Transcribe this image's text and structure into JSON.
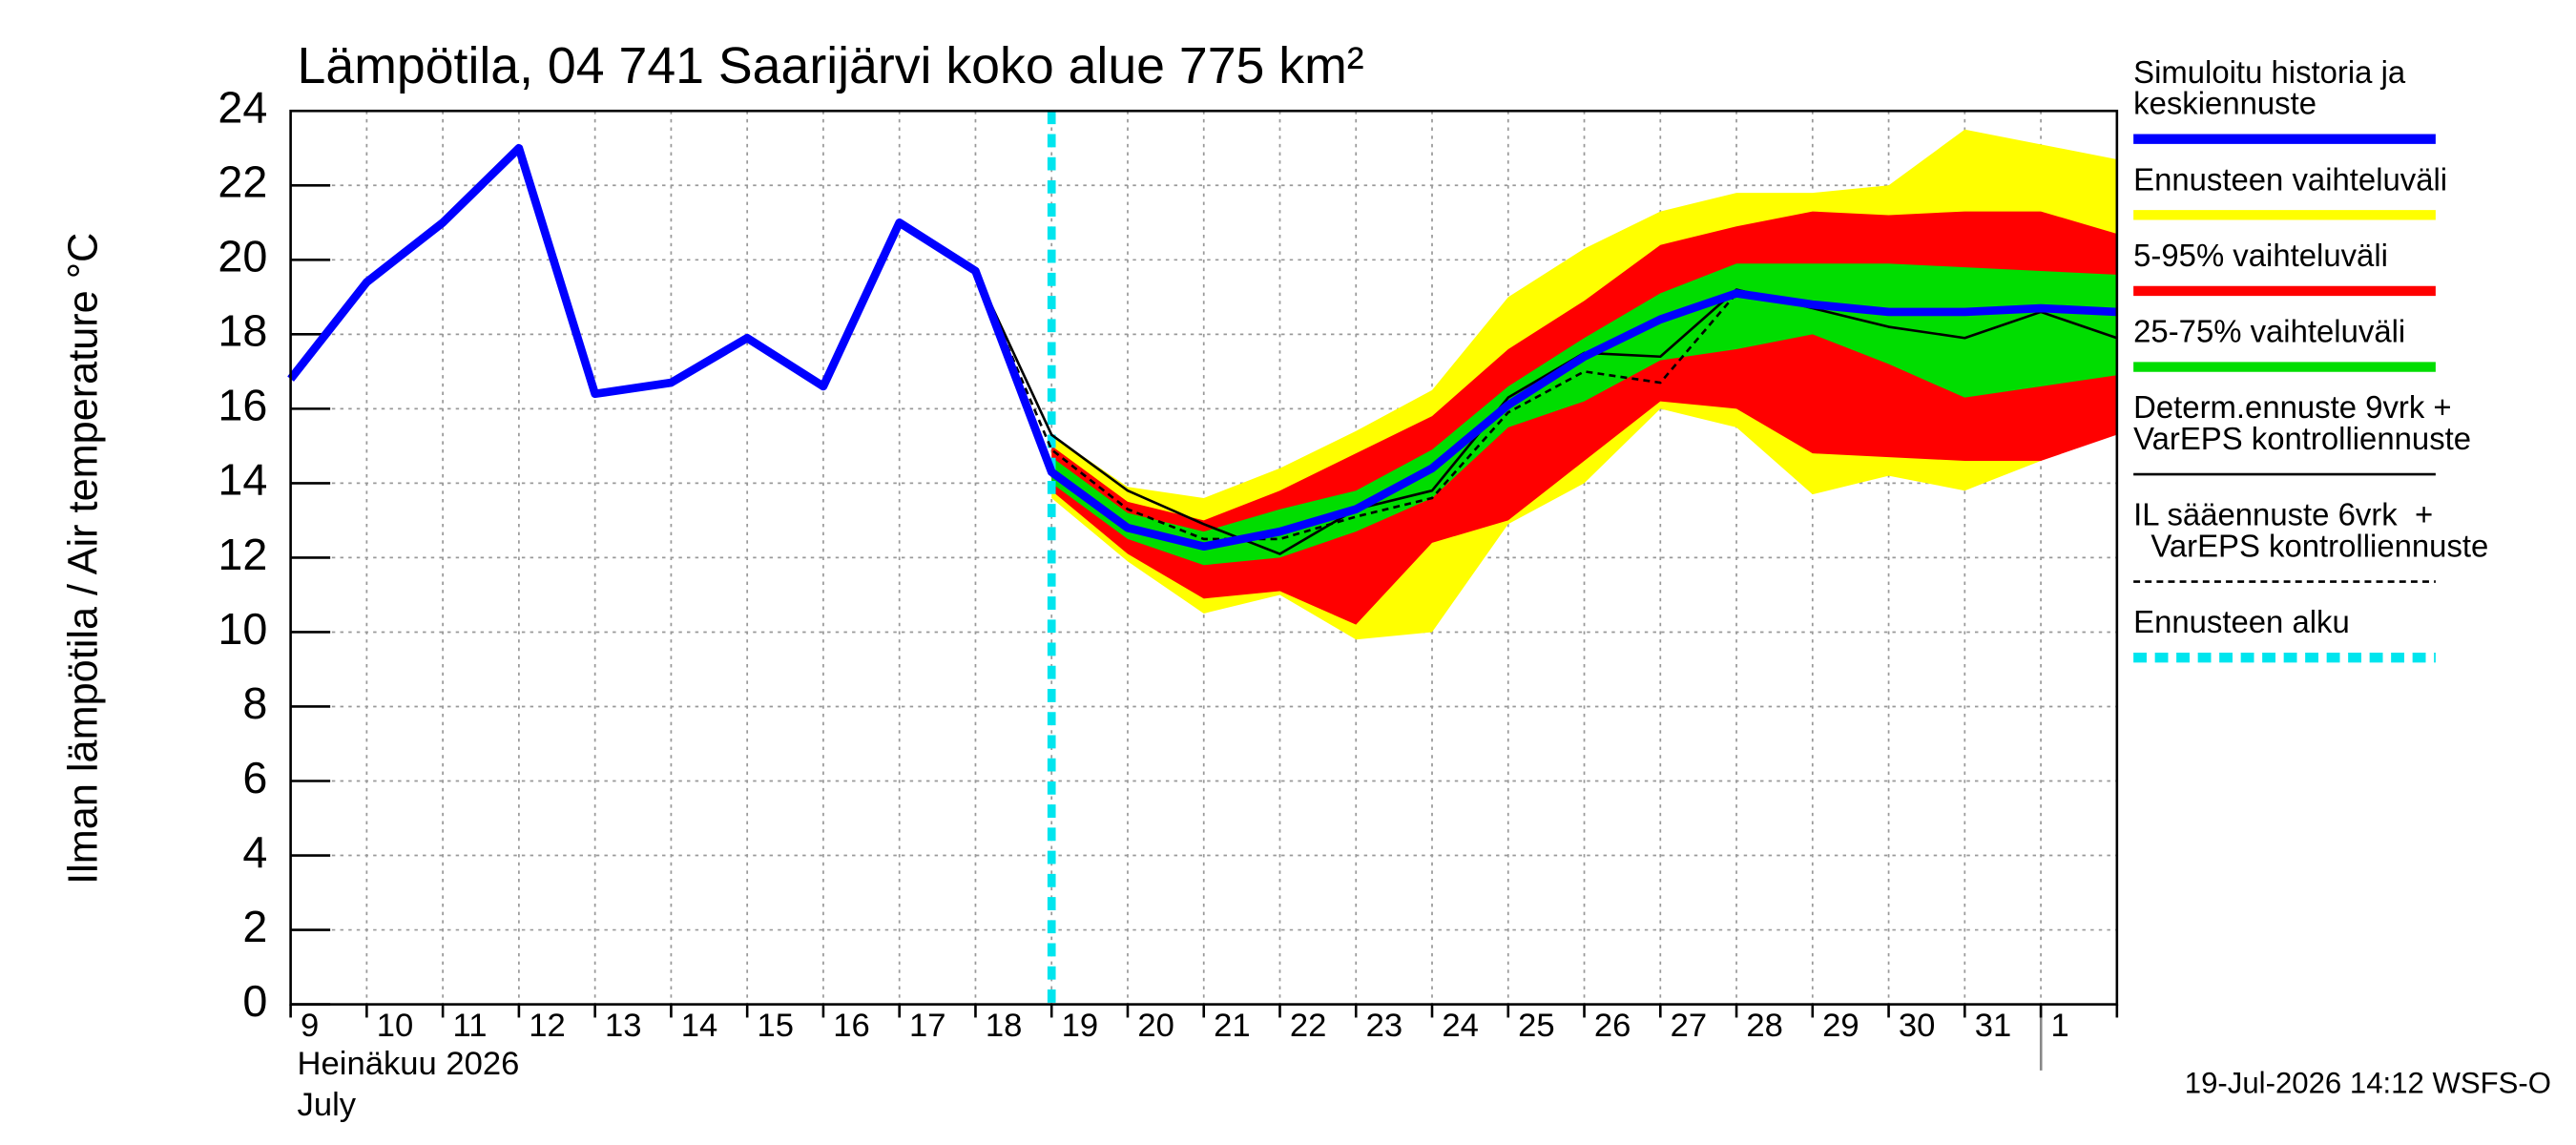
{
  "chart_data": {
    "type": "line",
    "title": "Lämpötila, 04 741 Saarijärvi koko alue 775 km²",
    "y_label": "Ilman lämpötila / Air temperature   °C",
    "x_label_lines": [
      "Heinäkuu  2026",
      "July"
    ],
    "footer": "19-Jul-2026 14:12 WSFS-O",
    "categories": [
      "9",
      "10",
      "11",
      "12",
      "13",
      "14",
      "15",
      "16",
      "17",
      "18",
      "19",
      "20",
      "21",
      "22",
      "23",
      "24",
      "25",
      "26",
      "27",
      "28",
      "29",
      "30",
      "31",
      "1",
      null
    ],
    "ylim": [
      0,
      24
    ],
    "yticks": [
      0,
      2,
      4,
      6,
      8,
      10,
      12,
      14,
      16,
      18,
      20,
      22,
      24
    ],
    "grid": true,
    "legend": "right",
    "series": [
      {
        "name": [
          "Simuloitu historia ja",
          "keskiennuste"
        ],
        "kind": "line",
        "color": "#0000ff",
        "values": [
          16.8,
          19.4,
          21.0,
          23.0,
          16.4,
          16.7,
          17.9,
          16.6,
          21.0,
          19.7,
          14.3,
          12.8,
          12.3,
          12.7,
          13.3,
          14.4,
          16.1,
          17.4,
          18.4,
          19.1,
          18.8,
          18.6,
          18.6,
          18.7,
          18.6
        ]
      },
      {
        "name": [
          "Ennusteen vaihteluväli"
        ],
        "kind": "band",
        "color": "#ffff00",
        "low": [
          null,
          null,
          null,
          null,
          null,
          null,
          null,
          null,
          null,
          null,
          13.6,
          11.9,
          10.5,
          11.0,
          9.8,
          10.0,
          12.9,
          14.0,
          16.0,
          15.5,
          13.7,
          14.2,
          13.8,
          14.6,
          15.5
        ],
        "high": [
          null,
          null,
          null,
          null,
          null,
          null,
          null,
          null,
          null,
          null,
          15.3,
          13.9,
          13.6,
          14.4,
          15.4,
          16.5,
          19.0,
          20.3,
          21.3,
          21.8,
          21.8,
          22.0,
          23.5,
          23.1,
          22.7
        ]
      },
      {
        "name": [
          "5-95% vaihteluväli"
        ],
        "kind": "band",
        "color": "#ff0000",
        "low": [
          null,
          null,
          null,
          null,
          null,
          null,
          null,
          null,
          null,
          null,
          13.8,
          12.1,
          10.9,
          11.1,
          10.2,
          12.4,
          13.0,
          14.6,
          16.2,
          16.0,
          14.8,
          14.7,
          14.6,
          14.6,
          15.3
        ],
        "high": [
          null,
          null,
          null,
          null,
          null,
          null,
          null,
          null,
          null,
          null,
          15.0,
          13.5,
          13.0,
          13.8,
          14.8,
          15.8,
          17.6,
          18.9,
          20.4,
          20.9,
          21.3,
          21.2,
          21.3,
          21.3,
          20.7
        ]
      },
      {
        "name": [
          "25-75% vaihteluväli"
        ],
        "kind": "band",
        "color": "#00dd00",
        "low": [
          null,
          null,
          null,
          null,
          null,
          null,
          null,
          null,
          null,
          null,
          14.0,
          12.5,
          11.8,
          12.0,
          12.7,
          13.6,
          15.5,
          16.2,
          17.3,
          17.6,
          18.0,
          17.2,
          16.3,
          16.6,
          16.9
        ],
        "high": [
          null,
          null,
          null,
          null,
          null,
          null,
          null,
          null,
          null,
          null,
          14.7,
          13.2,
          12.7,
          13.3,
          13.8,
          14.9,
          16.6,
          17.9,
          19.1,
          19.9,
          19.9,
          19.9,
          19.8,
          19.7,
          19.6
        ]
      },
      {
        "name": [
          "Determ.ennuste 9vrk +",
          "VarEPS kontrolliennuste"
        ],
        "kind": "line",
        "color": "#000000",
        "values": [
          null,
          null,
          null,
          null,
          null,
          null,
          null,
          null,
          21.0,
          19.7,
          15.3,
          13.8,
          12.9,
          12.1,
          13.3,
          13.8,
          16.3,
          17.5,
          17.4,
          19.2,
          18.7,
          18.2,
          17.9,
          18.6,
          17.9
        ]
      },
      {
        "name": [
          "IL sääennuste 6vrk  +",
          "  VarEPS kontrolliennuste"
        ],
        "kind": "line",
        "dashed": true,
        "color": "#000000",
        "values": [
          null,
          null,
          null,
          null,
          null,
          null,
          null,
          null,
          null,
          19.7,
          14.9,
          13.3,
          12.5,
          12.5,
          13.1,
          13.6,
          15.9,
          17.0,
          16.7,
          19.1,
          null,
          null,
          null,
          null,
          null
        ]
      },
      {
        "name": [
          "Ennusteen alku"
        ],
        "kind": "vline",
        "dashed": true,
        "color": "#00e5ee",
        "at": 10
      }
    ]
  }
}
